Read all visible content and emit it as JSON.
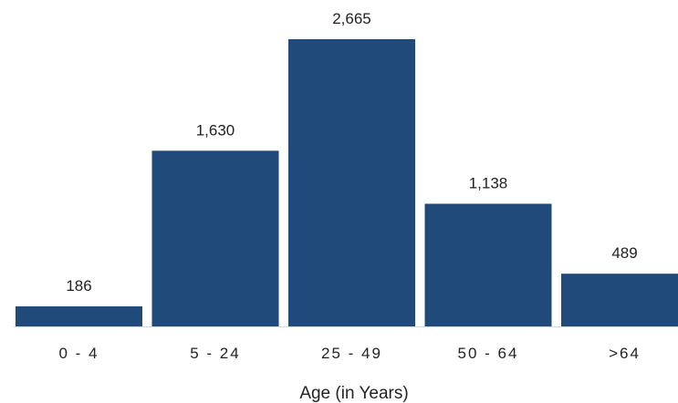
{
  "chart_data": {
    "type": "bar",
    "categories": [
      "0 - 4",
      "5 - 24",
      "25 - 49",
      "50 - 64",
      ">64"
    ],
    "values": [
      186,
      1630,
      2665,
      1138,
      489
    ],
    "value_labels": [
      "186",
      "1,630",
      "2,665",
      "1,138",
      "489"
    ],
    "xlabel": "Age (in Years)",
    "ylabel": "",
    "ylim": [
      0,
      2665
    ],
    "grid": false,
    "legend": "none",
    "bar_color": "#204a7a",
    "baseline_color": "#d9d9d9"
  }
}
